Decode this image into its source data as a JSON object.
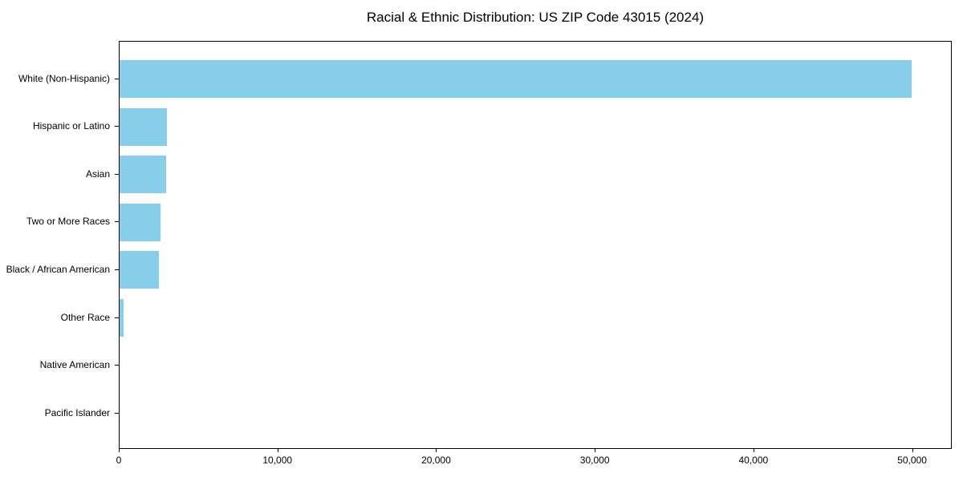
{
  "chart_data": {
    "type": "bar",
    "orientation": "horizontal",
    "title": "Racial & Ethnic Distribution: US ZIP Code 43015 (2024)",
    "categories": [
      "White (Non-Hispanic)",
      "Hispanic or Latino",
      "Asian",
      "Two or More Races",
      "Black / African American",
      "Other Race",
      "Native American",
      "Pacific Islander"
    ],
    "values": [
      50000,
      3000,
      2950,
      2600,
      2500,
      270,
      0,
      0
    ],
    "xlabel": "",
    "ylabel": "",
    "xlim": [
      0,
      52500
    ],
    "grid": false,
    "legend_position": "none",
    "bar_color": "#87CEEB",
    "text_color": "#000000",
    "background_color": "#ffffff",
    "x_ticks": [
      {
        "value": 0,
        "label": "0"
      },
      {
        "value": 10000,
        "label": "10,000"
      },
      {
        "value": 20000,
        "label": "20,000"
      },
      {
        "value": 30000,
        "label": "30,000"
      },
      {
        "value": 40000,
        "label": "40,000"
      },
      {
        "value": 50000,
        "label": "50,000"
      }
    ]
  }
}
